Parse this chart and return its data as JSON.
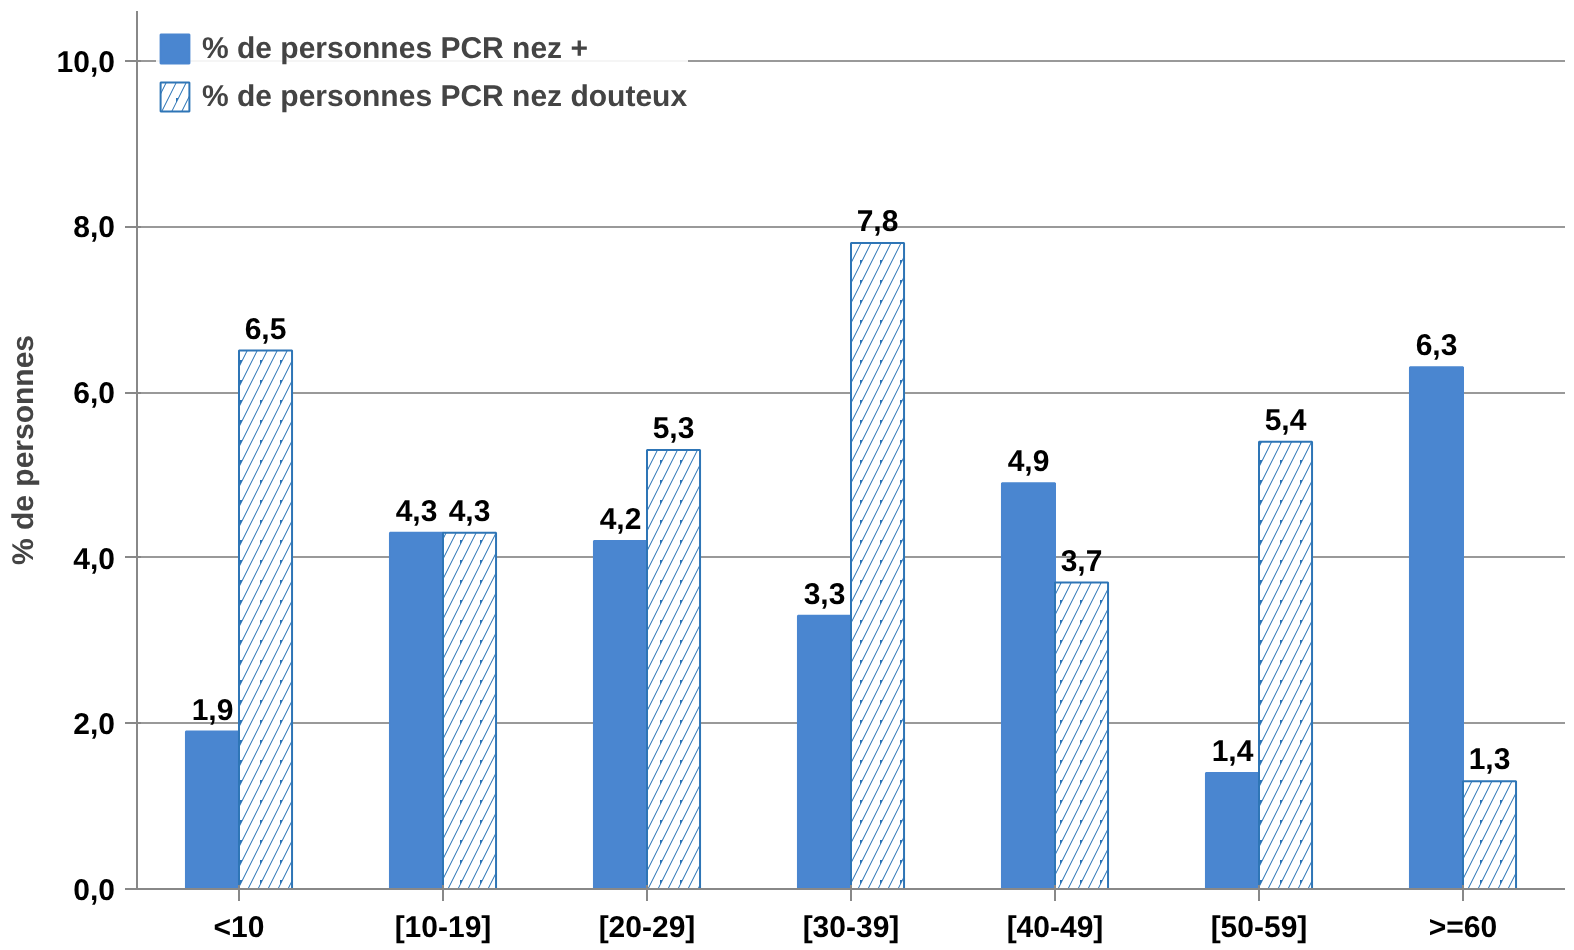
{
  "chart_data": {
    "type": "bar",
    "ylabel": "% de personnes",
    "categories": [
      "<10",
      "[10-19]",
      "[20-29]",
      "[30-39]",
      "[40-49]",
      "[50-59]",
      ">=60"
    ],
    "series": [
      {
        "name": "% de personnes PCR nez +",
        "color": "#4a86d0",
        "values": [
          1.9,
          4.3,
          4.2,
          3.3,
          4.9,
          1.4,
          6.3
        ],
        "value_labels": [
          "1,9",
          "4,3",
          "4,2",
          "3,3",
          "4,9",
          "1,4",
          "6,3"
        ]
      },
      {
        "name": "% de personnes PCR nez douteux",
        "color": "#2e75b6",
        "values": [
          6.5,
          4.3,
          5.3,
          7.8,
          3.7,
          5.4,
          1.3
        ],
        "value_labels": [
          "6,5",
          "4,3",
          "5,3",
          "7,8",
          "3,7",
          "5,4",
          "1,3"
        ]
      }
    ],
    "ylim": [
      0,
      10.6
    ],
    "yticks": [
      {
        "value": 0,
        "label": "0,0"
      },
      {
        "value": 2,
        "label": "2,0"
      },
      {
        "value": 4,
        "label": "4,0"
      },
      {
        "value": 6,
        "label": "6,0"
      },
      {
        "value": 8,
        "label": "8,0"
      },
      {
        "value": 10,
        "label": "10,0"
      }
    ],
    "grid": "y",
    "legend": "top left"
  }
}
